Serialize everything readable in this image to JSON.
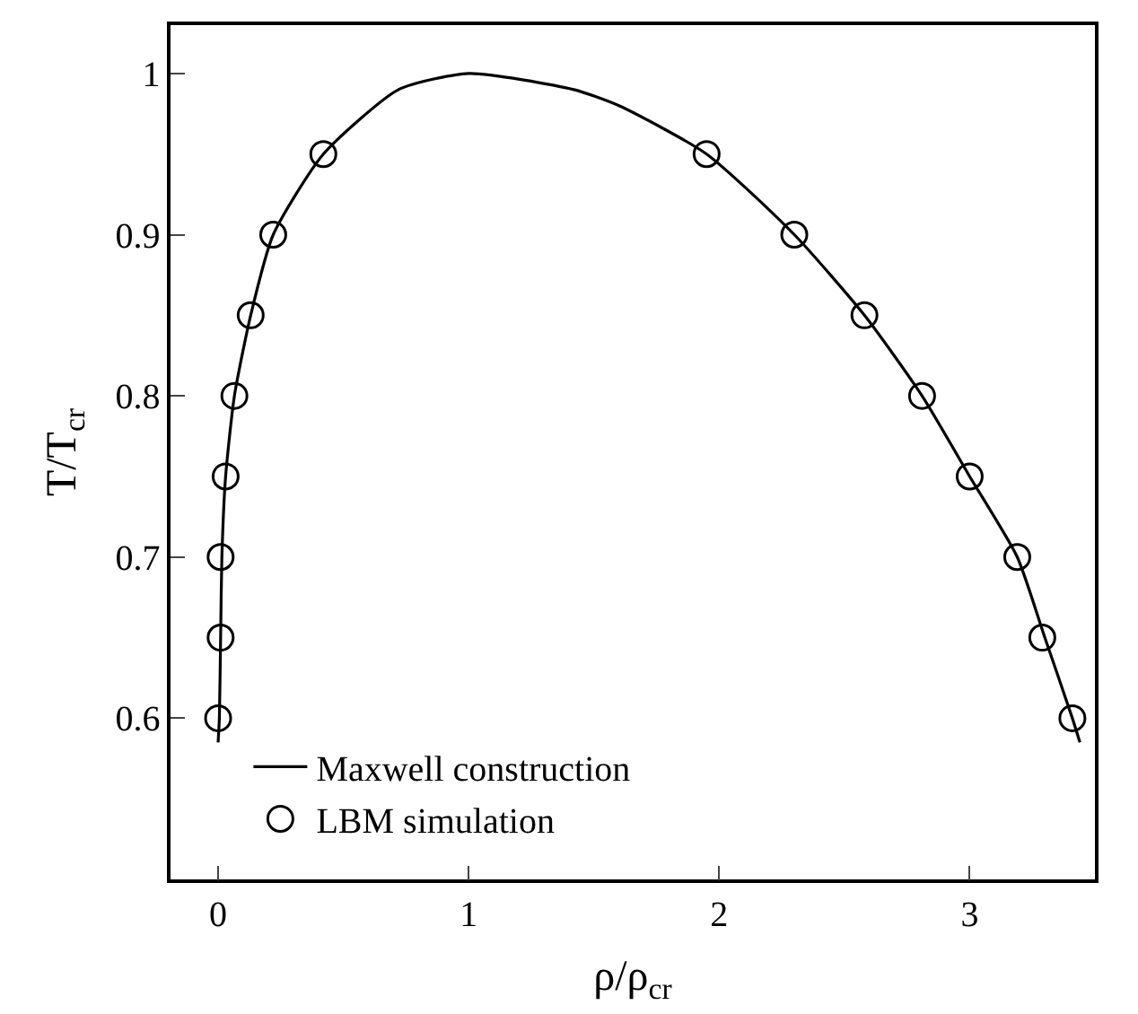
{
  "chart_data": {
    "type": "line",
    "xlabel": "ρ/ρ$_{cr}$",
    "ylabel": "T/T$_{cr}$",
    "xlim": [
      -0.19,
      3.5
    ],
    "ylim": [
      0.5,
      1.03
    ],
    "xticks": [
      0,
      1,
      2,
      3
    ],
    "yticks": [
      0.6,
      0.7,
      0.8,
      0.9,
      {
        "value": 1,
        "label": "1"
      }
    ],
    "legend": "bottom",
    "series": [
      {
        "name": "Maxwell construction",
        "color": "#000000",
        "marker": "none",
        "line_style": "solid",
        "x": [
          0.0,
          0.005,
          0.01,
          0.015,
          0.03,
          0.065,
          0.13,
          0.22,
          0.42,
          0.72,
          1.0,
          1.42,
          1.6,
          1.95,
          2.3,
          2.58,
          2.81,
          3.0,
          3.19,
          3.3,
          3.41,
          3.44
        ],
        "values": [
          0.585,
          0.6,
          0.65,
          0.7,
          0.75,
          0.8,
          0.85,
          0.9,
          0.95,
          0.99,
          1.0,
          0.99,
          0.98,
          0.95,
          0.9,
          0.85,
          0.8,
          0.75,
          0.7,
          0.65,
          0.6,
          0.585
        ]
      },
      {
        "name": "LBM simulation",
        "type": "scatter",
        "color": "#000000",
        "marker": "circle",
        "x": [
          0.0,
          0.01,
          0.01,
          0.03,
          0.065,
          0.13,
          0.22,
          0.42,
          1.95,
          2.3,
          2.58,
          2.81,
          3.0,
          3.19,
          3.29,
          3.41
        ],
        "values": [
          0.6,
          0.65,
          0.7,
          0.75,
          0.8,
          0.85,
          0.9,
          0.95,
          0.95,
          0.9,
          0.85,
          0.8,
          0.75,
          0.7,
          0.65,
          0.6
        ]
      }
    ]
  }
}
